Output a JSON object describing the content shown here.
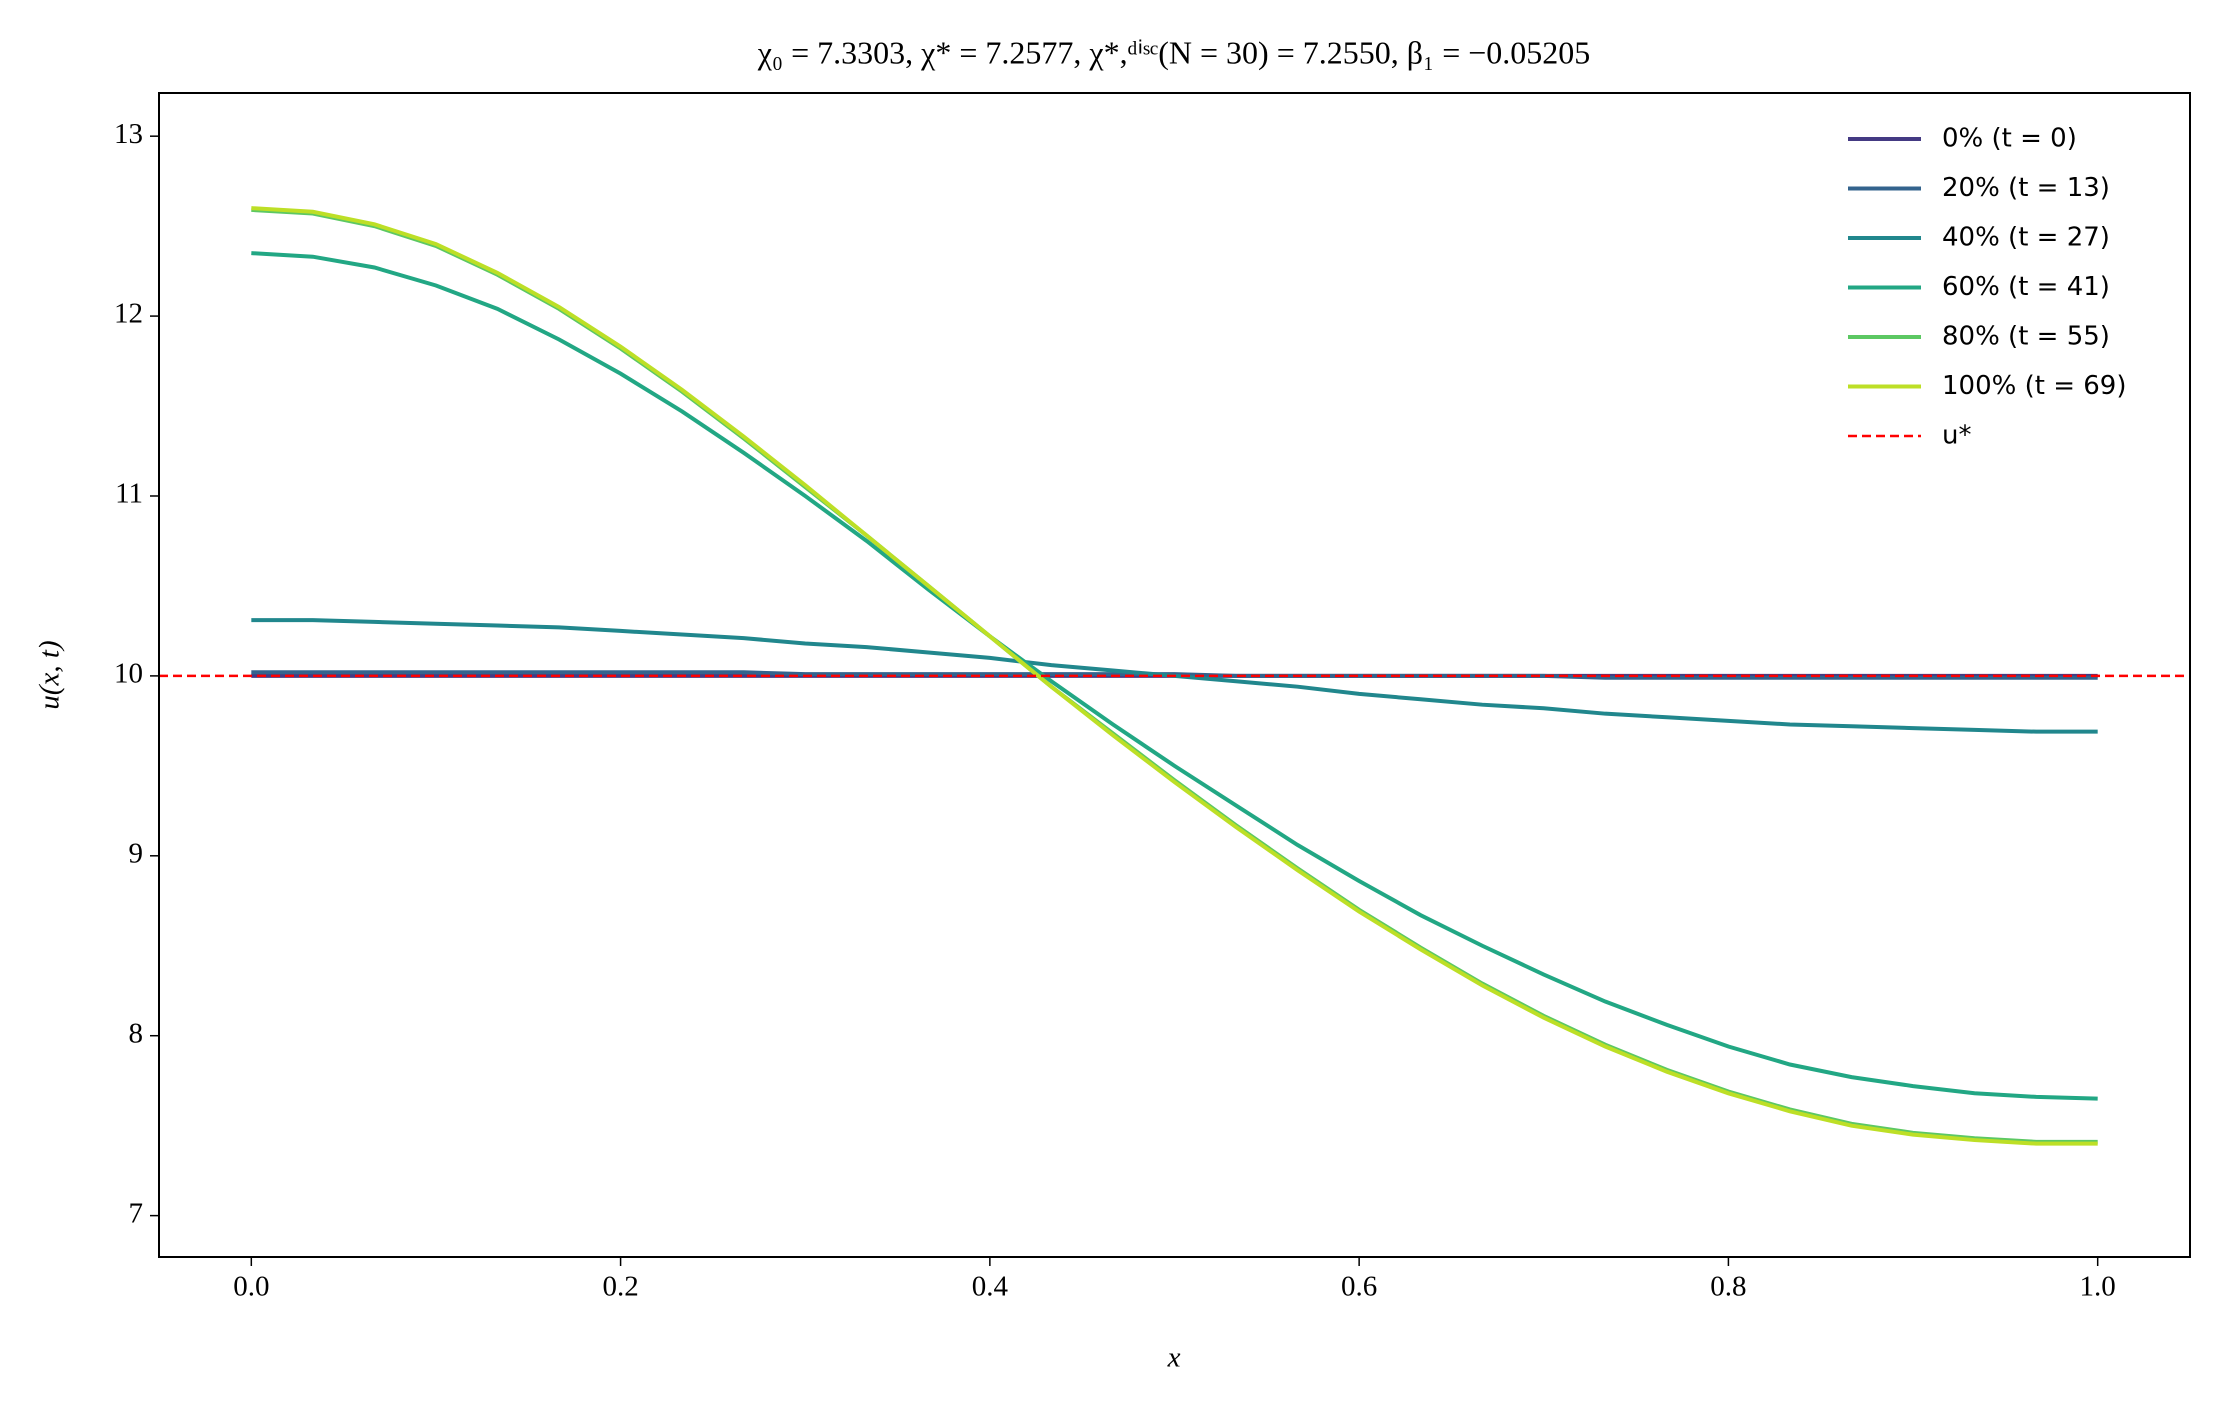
{
  "chart_data": {
    "type": "line",
    "title": "χ₀ = 7.3303,  χ* = 7.2577,  χ*,ᵈⁱˢᶜ(N = 30) = 7.2550,  β₁ = −0.05205",
    "xlabel": "x",
    "ylabel": "u(x, t)",
    "x": [
      0,
      0.0333,
      0.0667,
      0.1,
      0.1333,
      0.1667,
      0.2,
      0.2333,
      0.2667,
      0.3,
      0.3333,
      0.3667,
      0.4,
      0.4333,
      0.4667,
      0.5,
      0.5333,
      0.5667,
      0.6,
      0.6333,
      0.6667,
      0.7,
      0.7333,
      0.7667,
      0.8,
      0.8333,
      0.8667,
      0.9,
      0.9333,
      0.9667,
      1
    ],
    "series": [
      {
        "name": "0% (t = 0)",
        "color": "#443a83",
        "values": [
          10,
          10,
          10,
          10,
          10,
          10,
          10,
          10,
          10,
          10,
          10,
          10,
          10,
          10,
          10,
          10,
          10,
          10,
          10,
          10,
          10,
          10,
          10,
          10,
          10,
          10,
          10,
          10,
          10,
          10,
          10
        ]
      },
      {
        "name": "20% (t = 13)",
        "color": "#33638d",
        "values": [
          10.02,
          10.02,
          10.02,
          10.02,
          10.02,
          10.02,
          10.02,
          10.02,
          10.02,
          10.01,
          10.01,
          10.01,
          10.01,
          10.01,
          10.01,
          10.01,
          10.0,
          10.0,
          10.0,
          10.0,
          10.0,
          10.0,
          9.99,
          9.99,
          9.99,
          9.99,
          9.99,
          9.99,
          9.99,
          9.99,
          9.99
        ]
      },
      {
        "name": "40% (t = 27)",
        "color": "#21878d",
        "values": [
          10.31,
          10.31,
          10.3,
          10.29,
          10.28,
          10.27,
          10.25,
          10.23,
          10.21,
          10.18,
          10.16,
          10.13,
          10.1,
          10.06,
          10.03,
          10.0,
          9.97,
          9.94,
          9.9,
          9.87,
          9.84,
          9.82,
          9.79,
          9.77,
          9.75,
          9.73,
          9.72,
          9.71,
          9.7,
          9.69,
          9.69
        ]
      },
      {
        "name": "60% (t = 41)",
        "color": "#22a784",
        "values": [
          12.35,
          12.33,
          12.27,
          12.17,
          12.04,
          11.87,
          11.68,
          11.47,
          11.24,
          11.0,
          10.75,
          10.48,
          10.22,
          9.97,
          9.73,
          9.5,
          9.28,
          9.06,
          8.86,
          8.67,
          8.5,
          8.34,
          8.19,
          8.06,
          7.94,
          7.84,
          7.77,
          7.72,
          7.68,
          7.66,
          7.65
        ]
      },
      {
        "name": "80% (t = 55)",
        "color": "#5cc863",
        "values": [
          12.59,
          12.57,
          12.5,
          12.39,
          12.23,
          12.04,
          11.82,
          11.58,
          11.32,
          11.05,
          10.78,
          10.5,
          10.22,
          9.94,
          9.68,
          9.42,
          9.17,
          8.93,
          8.7,
          8.49,
          8.29,
          8.11,
          7.95,
          7.81,
          7.69,
          7.59,
          7.51,
          7.46,
          7.43,
          7.41,
          7.41
        ]
      },
      {
        "name": "100% (t = 69)",
        "color": "#bddf26",
        "values": [
          12.6,
          12.58,
          12.51,
          12.4,
          12.24,
          12.05,
          11.83,
          11.59,
          11.33,
          11.06,
          10.78,
          10.5,
          10.22,
          9.94,
          9.67,
          9.41,
          9.16,
          8.92,
          8.69,
          8.48,
          8.28,
          8.1,
          7.94,
          7.8,
          7.68,
          7.58,
          7.5,
          7.45,
          7.42,
          7.4,
          7.4
        ]
      }
    ],
    "hline": {
      "name": "u*",
      "value": 10,
      "color": "#ff0000",
      "style": "dashed"
    },
    "xlim": [
      -0.05,
      1.05
    ],
    "ylim": [
      6.77,
      13.24
    ],
    "xticks": [
      {
        "value": 0,
        "label": "0.0"
      },
      0.2,
      0.4,
      0.6,
      0.8,
      {
        "value": 1,
        "label": "1.0"
      }
    ],
    "yticks": [
      7,
      8,
      9,
      10,
      11,
      12,
      13
    ],
    "legend": "upper right",
    "grid": false
  }
}
